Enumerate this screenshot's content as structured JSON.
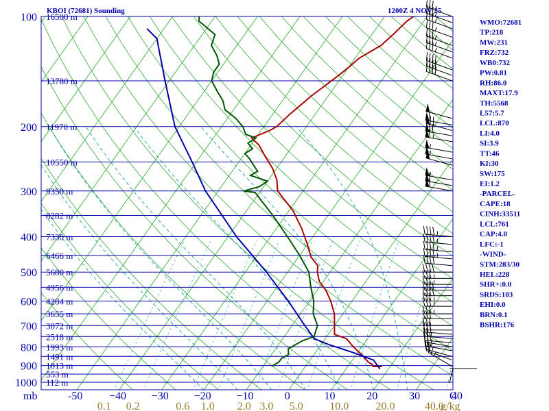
{
  "header": {
    "station_title": "KBOI (72681) Sounding",
    "time_label": "1200Z  4 NOV 25"
  },
  "chart_data": {
    "type": "skew-t",
    "pressure_axis": {
      "ticks": [
        100,
        200,
        300,
        400,
        500,
        600,
        700,
        800,
        900,
        1000
      ],
      "tick_labels": [
        "100",
        "200",
        "300",
        "400",
        "500",
        "600",
        "700",
        "800",
        "900",
        "1000"
      ],
      "corner_label": "mb"
    },
    "temperature_axis": {
      "ticks": [
        -50,
        -40,
        -30,
        -20,
        -10,
        0,
        10,
        20,
        30,
        40
      ],
      "tick_labels": [
        "-50",
        "−40",
        "−30",
        "−20",
        "−10",
        "0",
        "10",
        "20",
        "30",
        "40"
      ],
      "end_label": "C"
    },
    "mixing_ratio_axis": {
      "values": [
        0.1,
        0.2,
        0.6,
        1.0,
        2.0,
        3.0,
        5.0,
        10.0,
        20.0,
        40.0
      ],
      "tick_labels": [
        "0.1",
        "0.2",
        "0.6",
        "1.0",
        "2.0",
        "3.0",
        "5.0",
        "10.0",
        "20.0",
        "40.0"
      ],
      "unit_label": "g/kg"
    },
    "heights": [
      {
        "p": 100,
        "label": "16500 m"
      },
      {
        "p": 150,
        "label": "13780 m"
      },
      {
        "p": 200,
        "label": "11970 m"
      },
      {
        "p": 250,
        "label": "10550 m"
      },
      {
        "p": 300,
        "label": "9350 m"
      },
      {
        "p": 350,
        "label": "8282 m"
      },
      {
        "p": 400,
        "label": "7330 m"
      },
      {
        "p": 450,
        "label": "6466 m"
      },
      {
        "p": 500,
        "label": "5680 m"
      },
      {
        "p": 550,
        "label": "4956 m"
      },
      {
        "p": 600,
        "label": "4284 m"
      },
      {
        "p": 650,
        "label": "3655 m"
      },
      {
        "p": 700,
        "label": "3072 m"
      },
      {
        "p": 750,
        "label": "2518 m"
      },
      {
        "p": 800,
        "label": "1993 m"
      },
      {
        "p": 850,
        "label": "1491 m"
      },
      {
        "p": 900,
        "label": "1013 m"
      },
      {
        "p": 950,
        "label": "553 m"
      },
      {
        "p": 1000,
        "label": "112 m"
      }
    ],
    "series": [
      {
        "name": "Temperature",
        "color": "#aa0000",
        "points": [
          [
            905,
            18
          ],
          [
            906,
            16
          ],
          [
            895,
            15.5
          ],
          [
            880,
            14
          ],
          [
            850,
            12
          ],
          [
            800,
            8
          ],
          [
            760,
            5
          ],
          [
            740,
            1.5
          ],
          [
            700,
            0
          ],
          [
            650,
            -2
          ],
          [
            600,
            -5
          ],
          [
            560,
            -8
          ],
          [
            530,
            -11
          ],
          [
            500,
            -13
          ],
          [
            480,
            -14
          ],
          [
            455,
            -17
          ],
          [
            420,
            -20
          ],
          [
            380,
            -24
          ],
          [
            340,
            -29
          ],
          [
            300,
            -36
          ],
          [
            280,
            -38
          ],
          [
            260,
            -41
          ],
          [
            240,
            -45
          ],
          [
            225,
            -48
          ],
          [
            215,
            -51
          ],
          [
            205,
            -48
          ],
          [
            200,
            -47
          ],
          [
            185,
            -46
          ],
          [
            175,
            -45
          ],
          [
            165,
            -44
          ],
          [
            155,
            -42.5
          ],
          [
            145,
            -41
          ],
          [
            138,
            -40
          ],
          [
            130,
            -39
          ],
          [
            120,
            -36
          ],
          [
            112,
            -35
          ],
          [
            103,
            -34
          ],
          [
            99,
            -33
          ]
        ]
      },
      {
        "name": "Dewpoint",
        "color": "#005500",
        "points": [
          [
            905,
            -8
          ],
          [
            880,
            -7
          ],
          [
            860,
            -7
          ],
          [
            840,
            -6
          ],
          [
            810,
            -7
          ],
          [
            790,
            -6
          ],
          [
            770,
            -5
          ],
          [
            750,
            -3
          ],
          [
            700,
            -4
          ],
          [
            650,
            -7
          ],
          [
            600,
            -9
          ],
          [
            550,
            -12
          ],
          [
            500,
            -15
          ],
          [
            450,
            -20
          ],
          [
            400,
            -26
          ],
          [
            350,
            -33
          ],
          [
            320,
            -38
          ],
          [
            303,
            -41
          ],
          [
            300,
            -44
          ],
          [
            292,
            -41
          ],
          [
            282,
            -40
          ],
          [
            272,
            -45
          ],
          [
            265,
            -44
          ],
          [
            255,
            -46
          ],
          [
            245,
            -48
          ],
          [
            237,
            -50
          ],
          [
            230,
            -49
          ],
          [
            222,
            -51
          ],
          [
            215,
            -50
          ],
          [
            210,
            -53
          ],
          [
            200,
            -55
          ],
          [
            190,
            -58
          ],
          [
            180,
            -62
          ],
          [
            170,
            -64
          ],
          [
            160,
            -67
          ],
          [
            150,
            -70
          ],
          [
            142,
            -71
          ],
          [
            135,
            -71
          ],
          [
            128,
            -73
          ],
          [
            120,
            -76
          ],
          [
            112,
            -77
          ],
          [
            103,
            -83
          ],
          [
            99,
            -84
          ]
        ]
      },
      {
        "name": "Parcel",
        "color": "#0000aa",
        "points": [
          [
            920,
            18
          ],
          [
            870,
            15
          ],
          [
            830,
            9
          ],
          [
            790,
            2
          ],
          [
            761,
            -2.5
          ],
          [
            700,
            -7
          ],
          [
            600,
            -15
          ],
          [
            500,
            -25
          ],
          [
            400,
            -38
          ],
          [
            300,
            -53
          ],
          [
            250,
            -61
          ],
          [
            200,
            -71
          ],
          [
            150,
            -81
          ],
          [
            115,
            -90
          ],
          [
            108,
            -94
          ]
        ]
      }
    ],
    "wind_barbs": [
      {
        "p": 905,
        "dir": 300,
        "spd": 25
      },
      {
        "p": 870,
        "dir": 290,
        "spd": 20
      },
      {
        "p": 850,
        "dir": 285,
        "spd": 20
      },
      {
        "p": 820,
        "dir": 280,
        "spd": 25
      },
      {
        "p": 800,
        "dir": 280,
        "spd": 25
      },
      {
        "p": 780,
        "dir": 275,
        "spd": 30
      },
      {
        "p": 760,
        "dir": 275,
        "spd": 25
      },
      {
        "p": 740,
        "dir": 275,
        "spd": 30
      },
      {
        "p": 720,
        "dir": 270,
        "spd": 30
      },
      {
        "p": 700,
        "dir": 270,
        "spd": 30
      },
      {
        "p": 670,
        "dir": 270,
        "spd": 30
      },
      {
        "p": 650,
        "dir": 270,
        "spd": 35
      },
      {
        "p": 620,
        "dir": 270,
        "spd": 35
      },
      {
        "p": 600,
        "dir": 270,
        "spd": 35
      },
      {
        "p": 580,
        "dir": 270,
        "spd": 40
      },
      {
        "p": 560,
        "dir": 270,
        "spd": 40
      },
      {
        "p": 540,
        "dir": 270,
        "spd": 35
      },
      {
        "p": 520,
        "dir": 270,
        "spd": 35
      },
      {
        "p": 500,
        "dir": 270,
        "spd": 40
      },
      {
        "p": 480,
        "dir": 275,
        "spd": 40
      },
      {
        "p": 460,
        "dir": 275,
        "spd": 45
      },
      {
        "p": 440,
        "dir": 275,
        "spd": 45
      },
      {
        "p": 420,
        "dir": 275,
        "spd": 45
      },
      {
        "p": 400,
        "dir": 275,
        "spd": 45
      },
      {
        "p": 300,
        "dir": 280,
        "spd": 60
      },
      {
        "p": 290,
        "dir": 280,
        "spd": 60
      },
      {
        "p": 280,
        "dir": 280,
        "spd": 55
      },
      {
        "p": 255,
        "dir": 285,
        "spd": 50
      },
      {
        "p": 245,
        "dir": 280,
        "spd": 55
      },
      {
        "p": 235,
        "dir": 280,
        "spd": 55
      },
      {
        "p": 220,
        "dir": 280,
        "spd": 65
      },
      {
        "p": 212,
        "dir": 280,
        "spd": 70
      },
      {
        "p": 205,
        "dir": 285,
        "spd": 70
      },
      {
        "p": 198,
        "dir": 280,
        "spd": 60
      },
      {
        "p": 190,
        "dir": 285,
        "spd": 50
      },
      {
        "p": 150,
        "dir": 290,
        "spd": 40
      },
      {
        "p": 145,
        "dir": 290,
        "spd": 40
      },
      {
        "p": 140,
        "dir": 290,
        "spd": 40
      },
      {
        "p": 130,
        "dir": 290,
        "spd": 35
      },
      {
        "p": 125,
        "dir": 290,
        "spd": 35
      },
      {
        "p": 120,
        "dir": 290,
        "spd": 35
      },
      {
        "p": 114,
        "dir": 290,
        "spd": 35
      },
      {
        "p": 108,
        "dir": 290,
        "spd": 35
      },
      {
        "p": 104,
        "dir": 290,
        "spd": 35
      },
      {
        "p": 100,
        "dir": 290,
        "spd": 35
      }
    ],
    "colors": {
      "frame": "#0000aa",
      "isotherm": "#22aa22",
      "dry_adiabat": "#33aa33",
      "moist_adiabat": "#009999",
      "mixing_ratio": "#33aaaa",
      "axis_gold": "#9a7a2a"
    }
  },
  "indices": [
    "WMO:72681",
    "TP:218",
    "MW:231",
    "FRZ:732",
    "WB0:732",
    "PW:0.81",
    "RH:86.0",
    "MAXT:17.9",
    "TH:5568",
    "L57:5.7",
    "LCL:870",
    "LI:4.0",
    "SI:3.9",
    "TT:46",
    "KI:30",
    "SW:175",
    "EI:1.2",
    "-PARCEL-",
    "CAPE:18",
    "CINH:33511",
    "LCL:761",
    "CAP:4.0",
    "LFC:-1",
    "-WIND-",
    "STM:283/30",
    "HEL:228",
    "SHR+:0.0",
    "SRDS:103",
    "EHI:0.0",
    "BRN:0.1",
    "BSHR:176"
  ]
}
